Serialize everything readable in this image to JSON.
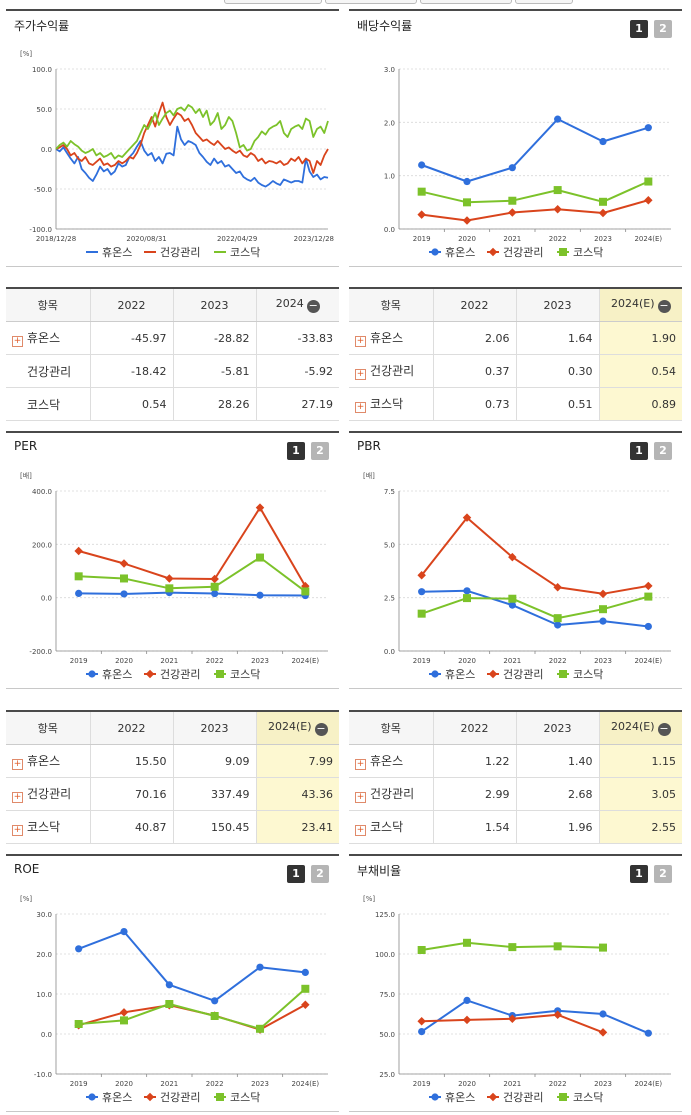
{
  "colors": {
    "s1": "#2f6fdc",
    "s2": "#d9441c",
    "s3": "#7cc22a",
    "grid": "#d8d8d8",
    "axis": "#888"
  },
  "series_names": [
    "휴온스",
    "건강관리",
    "코스닥"
  ],
  "buttons": {
    "b1": "1",
    "b2": "2"
  },
  "minus_icon": "−",
  "plus_icon": "+",
  "charts": [
    {
      "key": "stock",
      "title": "주가수익률",
      "unit": "[%]",
      "buttons": false,
      "chart_data": {
        "type": "line",
        "ylim": [
          -100,
          100
        ],
        "yticks": [
          "100.0",
          "50.0",
          "0.0",
          "-50.0",
          "-100.0"
        ],
        "ytick_values": [
          100,
          50,
          0,
          -50,
          -100
        ],
        "x_labels": [
          "2018/12/28",
          "2020/08/31",
          "2022/04/29",
          "2023/12/28"
        ],
        "series": [
          {
            "name": "휴온스",
            "values": [
              0,
              -3,
              2,
              -5,
              -12,
              -18,
              -10,
              -25,
              -30,
              -36,
              -40,
              -32,
              -22,
              -28,
              -25,
              -32,
              -28,
              -18,
              -22,
              -20,
              -10,
              -5,
              3,
              10,
              -2,
              -8,
              -5,
              -15,
              -10,
              -18,
              -6,
              -5,
              -8,
              28,
              12,
              5,
              10,
              8,
              5,
              -5,
              -10,
              -16,
              -20,
              -12,
              -18,
              -15,
              -22,
              -20,
              -25,
              -30,
              -28,
              -35,
              -38,
              -40,
              -36,
              -42,
              -45,
              -47,
              -44,
              -40,
              -43,
              -45,
              -38,
              -40,
              -42,
              -40,
              -40,
              -42,
              -12,
              -28,
              -35,
              -32,
              -38,
              -35,
              -36
            ]
          },
          {
            "name": "건강관리",
            "values": [
              0,
              2,
              5,
              0,
              -8,
              -5,
              -12,
              -15,
              -10,
              -18,
              -20,
              -16,
              -12,
              -20,
              -18,
              -22,
              -20,
              -15,
              -18,
              -15,
              -10,
              -12,
              -5,
              5,
              20,
              30,
              40,
              28,
              45,
              58,
              40,
              30,
              38,
              45,
              42,
              35,
              38,
              30,
              20,
              15,
              10,
              12,
              8,
              5,
              10,
              5,
              0,
              2,
              -2,
              -5,
              -2,
              -8,
              -10,
              -5,
              -8,
              -15,
              -12,
              -18,
              -15,
              -16,
              -18,
              -15,
              -20,
              -18,
              -12,
              -15,
              -10,
              -18,
              -12,
              -15,
              -30,
              -15,
              -20,
              -8,
              0
            ]
          },
          {
            "name": "코스닥",
            "values": [
              0,
              5,
              8,
              3,
              10,
              6,
              3,
              -2,
              -5,
              -3,
              0,
              -8,
              -5,
              -10,
              -8,
              -5,
              -12,
              -8,
              -10,
              -5,
              0,
              5,
              10,
              20,
              30,
              25,
              35,
              45,
              30,
              38,
              45,
              48,
              42,
              50,
              52,
              48,
              55,
              52,
              45,
              50,
              40,
              48,
              30,
              35,
              45,
              25,
              30,
              40,
              35,
              20,
              2,
              5,
              -2,
              0,
              10,
              15,
              22,
              18,
              25,
              28,
              30,
              35,
              20,
              15,
              25,
              28,
              30,
              25,
              38,
              35,
              15,
              25,
              28,
              20,
              35
            ]
          }
        ]
      }
    },
    {
      "key": "dividend",
      "title": "배당수익률",
      "unit": "",
      "buttons": true,
      "chart_data": {
        "type": "line",
        "ylim": [
          0,
          3
        ],
        "yticks": [
          "3.0",
          "2.0",
          "1.0",
          "0.0"
        ],
        "ytick_values": [
          3,
          2,
          1,
          0
        ],
        "categories": [
          "2019",
          "2020",
          "2021",
          "2022",
          "2023",
          "2024(E)"
        ],
        "series": [
          {
            "name": "휴온스",
            "values": [
              1.2,
              0.89,
              1.15,
              2.06,
              1.64,
              1.9
            ]
          },
          {
            "name": "건강관리",
            "values": [
              0.27,
              0.16,
              0.31,
              0.37,
              0.3,
              0.54
            ]
          },
          {
            "name": "코스닥",
            "values": [
              0.7,
              0.5,
              0.53,
              0.73,
              0.51,
              0.89
            ]
          }
        ]
      }
    },
    {
      "key": "per",
      "title": "PER",
      "unit": "[배]",
      "buttons": true,
      "chart_data": {
        "type": "line",
        "ylim": [
          -200,
          400
        ],
        "yticks": [
          "400.0",
          "200.0",
          "0.0",
          "-200.0"
        ],
        "ytick_values": [
          400,
          200,
          0,
          -200
        ],
        "categories": [
          "2019",
          "2020",
          "2021",
          "2022",
          "2023",
          "2024(E)"
        ],
        "series": [
          {
            "name": "휴온스",
            "values": [
              16,
              14,
              19,
              15.5,
              9.09,
              7.99
            ]
          },
          {
            "name": "건강관리",
            "values": [
              175,
              128,
              72,
              70.16,
              337.49,
              43.36
            ]
          },
          {
            "name": "코스닥",
            "values": [
              80,
              72,
              35,
              40.87,
              150.45,
              23.41
            ]
          }
        ]
      }
    },
    {
      "key": "pbr",
      "title": "PBR",
      "unit": "[배]",
      "buttons": true,
      "chart_data": {
        "type": "line",
        "ylim": [
          0,
          7.5
        ],
        "yticks": [
          "7.5",
          "5.0",
          "2.5",
          "0.0"
        ],
        "ytick_values": [
          7.5,
          5,
          2.5,
          0
        ],
        "categories": [
          "2019",
          "2020",
          "2021",
          "2022",
          "2023",
          "2024(E)"
        ],
        "series": [
          {
            "name": "휴온스",
            "values": [
              2.78,
              2.82,
              2.15,
              1.22,
              1.4,
              1.15
            ]
          },
          {
            "name": "건강관리",
            "values": [
              3.55,
              6.25,
              4.4,
              2.99,
              2.68,
              3.05
            ]
          },
          {
            "name": "코스닥",
            "values": [
              1.75,
              2.48,
              2.45,
              1.54,
              1.96,
              2.55
            ]
          }
        ]
      }
    },
    {
      "key": "roe",
      "title": "ROE",
      "unit": "[%]",
      "buttons": true,
      "chart_data": {
        "type": "line",
        "ylim": [
          -10,
          30
        ],
        "yticks": [
          "30.0",
          "20.0",
          "10.0",
          "0.0",
          "-10.0"
        ],
        "ytick_values": [
          30,
          20,
          10,
          0,
          -10
        ],
        "categories": [
          "2019",
          "2020",
          "2021",
          "2022",
          "2023",
          "2024(E)"
        ],
        "series": [
          {
            "name": "휴온스",
            "values": [
              21.3,
              25.6,
              12.3,
              8.3,
              16.7,
              15.4
            ]
          },
          {
            "name": "건강관리",
            "values": [
              2.2,
              5.4,
              7.2,
              4.6,
              1.1,
              7.3
            ]
          },
          {
            "name": "코스닥",
            "values": [
              2.5,
              3.4,
              7.5,
              4.5,
              1.3,
              11.3
            ]
          }
        ]
      }
    },
    {
      "key": "debt",
      "title": "부채비율",
      "unit": "[%]",
      "buttons": true,
      "chart_data": {
        "type": "line",
        "ylim": [
          25,
          125
        ],
        "yticks": [
          "125.0",
          "100.0",
          "75.0",
          "50.0",
          "25.0"
        ],
        "ytick_values": [
          125,
          100,
          75,
          50,
          25
        ],
        "categories": [
          "2019",
          "2020",
          "2021",
          "2022",
          "2023",
          "2024(E)"
        ],
        "series": [
          {
            "name": "휴온스",
            "values": [
              51.5,
              71.0,
              61.5,
              64.5,
              62.5,
              50.5
            ]
          },
          {
            "name": "건강관리",
            "values": [
              58.0,
              58.8,
              59.5,
              62.0,
              51.0,
              null
            ]
          },
          {
            "name": "코스닥",
            "values": [
              102.5,
              107.0,
              104.3,
              104.8,
              104.0,
              null
            ]
          }
        ]
      }
    }
  ],
  "tables": [
    {
      "key": "stock_tbl",
      "header": [
        "항목",
        "2022",
        "2023",
        "2024"
      ],
      "highlight": false,
      "rows": [
        {
          "label": "휴온스",
          "plus": true,
          "values": [
            "-45.97",
            "-28.82",
            "-33.83"
          ]
        },
        {
          "label": "건강관리",
          "plus": false,
          "values": [
            "-18.42",
            "-5.81",
            "-5.92"
          ]
        },
        {
          "label": "코스닥",
          "plus": false,
          "values": [
            "0.54",
            "28.26",
            "27.19"
          ]
        }
      ]
    },
    {
      "key": "dividend_tbl",
      "header": [
        "항목",
        "2022",
        "2023",
        "2024(E)"
      ],
      "highlight": true,
      "rows": [
        {
          "label": "휴온스",
          "plus": true,
          "values": [
            "2.06",
            "1.64",
            "1.90"
          ]
        },
        {
          "label": "건강관리",
          "plus": true,
          "values": [
            "0.37",
            "0.30",
            "0.54"
          ]
        },
        {
          "label": "코스닥",
          "plus": true,
          "values": [
            "0.73",
            "0.51",
            "0.89"
          ]
        }
      ]
    },
    {
      "key": "per_tbl",
      "header": [
        "항목",
        "2022",
        "2023",
        "2024(E)"
      ],
      "highlight": true,
      "rows": [
        {
          "label": "휴온스",
          "plus": true,
          "values": [
            "15.50",
            "9.09",
            "7.99"
          ]
        },
        {
          "label": "건강관리",
          "plus": true,
          "values": [
            "70.16",
            "337.49",
            "43.36"
          ]
        },
        {
          "label": "코스닥",
          "plus": true,
          "values": [
            "40.87",
            "150.45",
            "23.41"
          ]
        }
      ]
    },
    {
      "key": "pbr_tbl",
      "header": [
        "항목",
        "2022",
        "2023",
        "2024(E)"
      ],
      "highlight": true,
      "rows": [
        {
          "label": "휴온스",
          "plus": true,
          "values": [
            "1.22",
            "1.40",
            "1.15"
          ]
        },
        {
          "label": "건강관리",
          "plus": true,
          "values": [
            "2.99",
            "2.68",
            "3.05"
          ]
        },
        {
          "label": "코스닥",
          "plus": true,
          "values": [
            "1.54",
            "1.96",
            "2.55"
          ]
        }
      ]
    }
  ]
}
